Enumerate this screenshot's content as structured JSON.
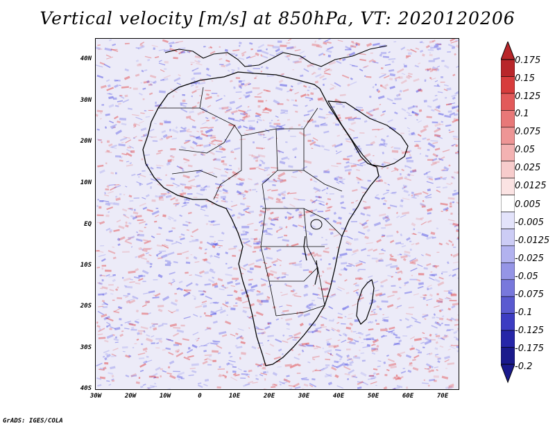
{
  "title": "Vertical velocity [m/s] at 850hPa, VT: 2020120206",
  "credit": "GrADS: IGES/COLA",
  "map": {
    "lon_range": [
      -30,
      75
    ],
    "lat_range": [
      -40,
      45
    ],
    "lat_ticks": [
      "40N",
      "30N",
      "20N",
      "10N",
      "EQ",
      "10S",
      "20S",
      "30S",
      "40S"
    ],
    "lon_ticks": [
      "30W",
      "20W",
      "10W",
      "0",
      "10E",
      "20E",
      "30E",
      "40E",
      "50E",
      "60E",
      "70E"
    ]
  },
  "colorbar": {
    "labels": [
      "0.175",
      "0.15",
      "0.125",
      "0.1",
      "0.075",
      "0.05",
      "0.025",
      "0.0125",
      "0.005",
      "-0.005",
      "-0.0125",
      "-0.025",
      "-0.05",
      "-0.075",
      "-0.1",
      "-0.125",
      "-0.175",
      "-0.2"
    ],
    "colors": [
      "#b8262a",
      "#d73c3c",
      "#e25a5a",
      "#e87878",
      "#ee9595",
      "#f3b2b2",
      "#f7cccc",
      "#fbe3e3",
      "#ffffff",
      "#e3e3fb",
      "#ccccf5",
      "#b2b2ef",
      "#9595e6",
      "#7878dc",
      "#5a5ad0",
      "#3c3cc2",
      "#2626a8",
      "#1a1a8c"
    ]
  },
  "colors": {
    "ocean_bg": "#ecebf8",
    "land_bg": "#e9e4f2",
    "positive": "#e03030",
    "negative": "#3c3ce0",
    "coastline": "#000000"
  }
}
